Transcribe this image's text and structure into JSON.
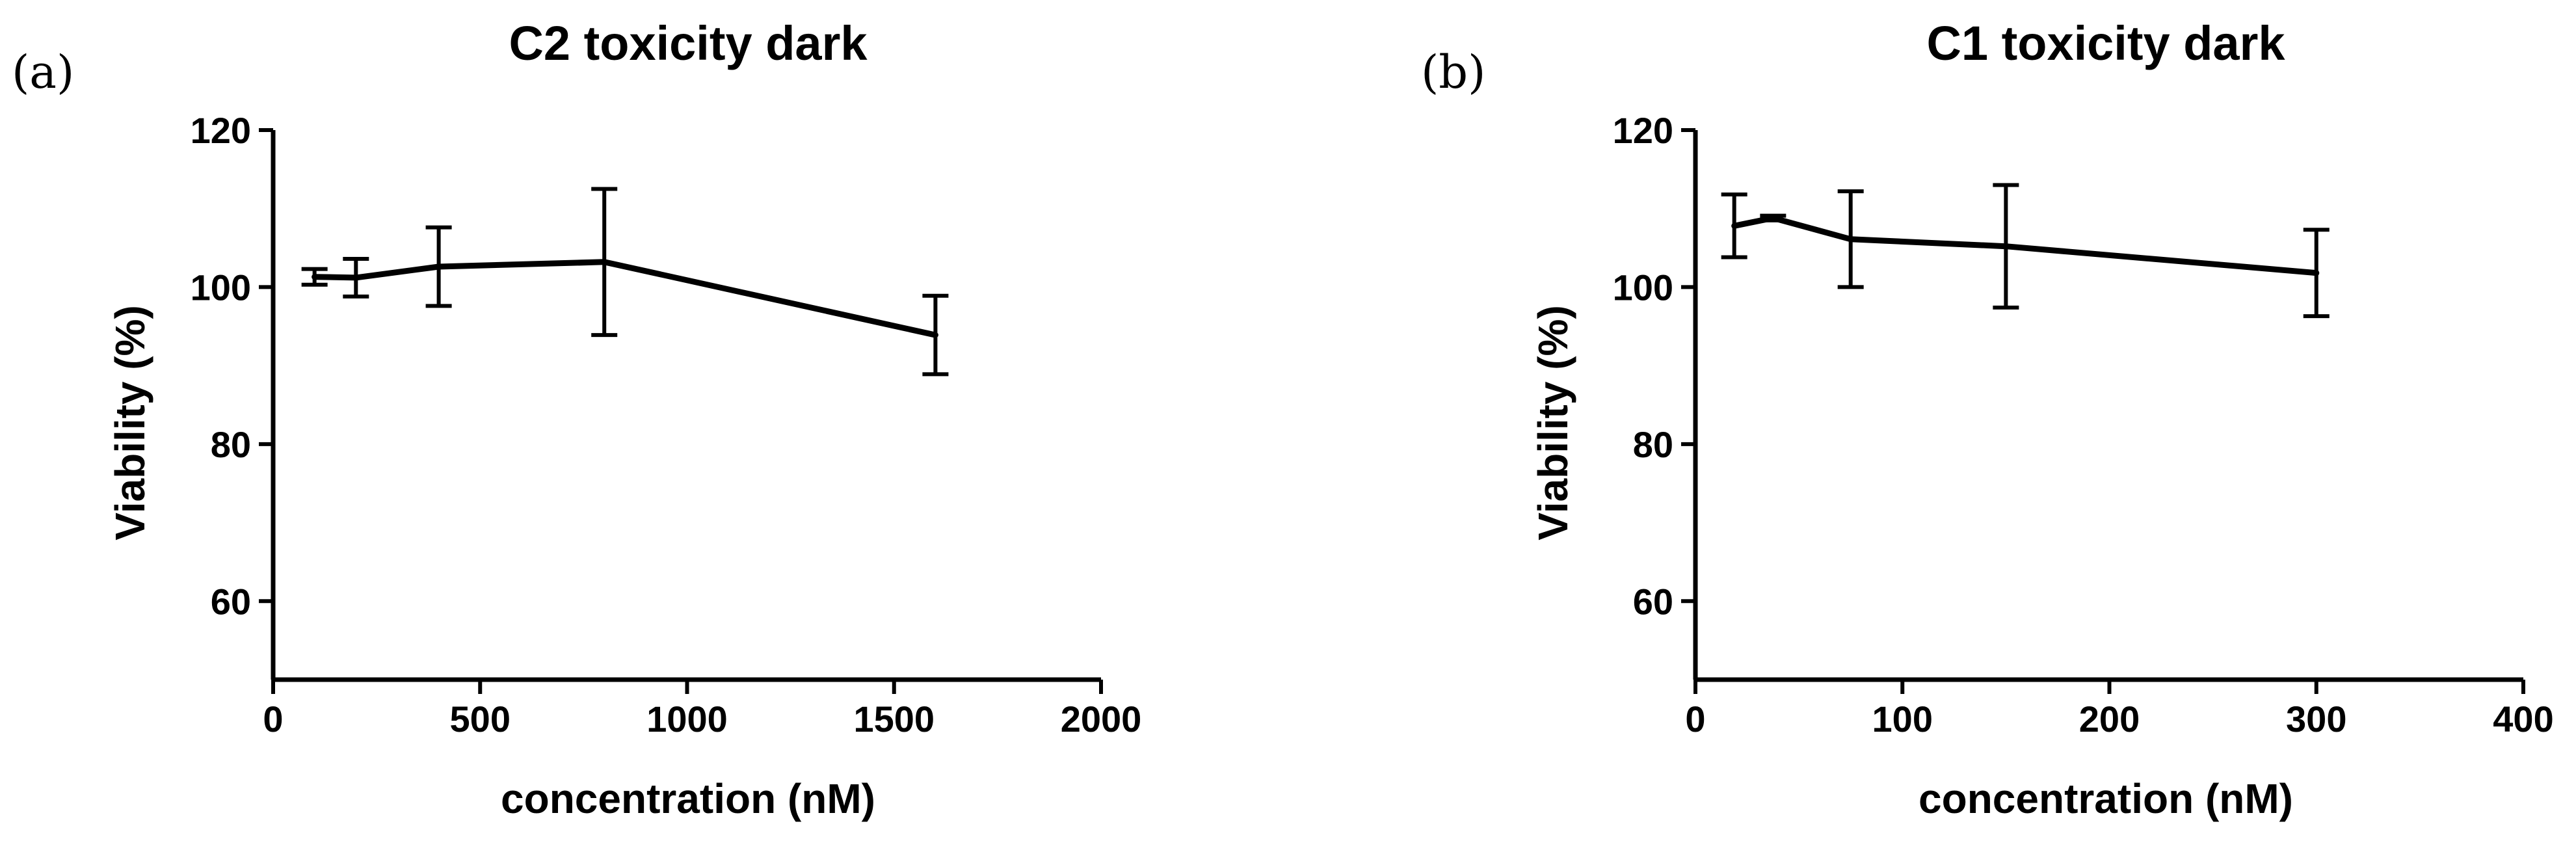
{
  "chart_data": [
    {
      "panel_label": "(a)",
      "type": "line",
      "title": "C2 toxicity dark",
      "xlabel": "concentration (nM)",
      "ylabel": "Viability (%)",
      "xlim": [
        0,
        2000
      ],
      "ylim": [
        50,
        120
      ],
      "xticks": [
        0,
        500,
        1000,
        1500,
        2000
      ],
      "yticks": [
        60,
        80,
        100,
        120
      ],
      "grid": false,
      "legend": "none",
      "series": [
        {
          "x": [
            100,
            200,
            400,
            800,
            1600
          ],
          "y": [
            101.3,
            101.2,
            102.6,
            103.2,
            93.9
          ],
          "error": [
            1.0,
            2.4,
            5.0,
            9.3,
            5.0
          ]
        }
      ]
    },
    {
      "panel_label": "(b)",
      "type": "line",
      "title": "C1 toxicity dark",
      "xlabel": "concentration (nM)",
      "ylabel": "Viability (%)",
      "xlim": [
        0,
        400
      ],
      "ylim": [
        50,
        120
      ],
      "xticks": [
        0,
        100,
        200,
        300,
        400
      ],
      "yticks": [
        60,
        80,
        100,
        120
      ],
      "grid": false,
      "legend": "none",
      "series": [
        {
          "x": [
            18.75,
            37.5,
            75,
            150,
            300
          ],
          "y": [
            107.8,
            108.8,
            106.1,
            105.2,
            101.8
          ],
          "error": [
            4.0,
            0.3,
            6.1,
            7.8,
            5.5
          ]
        }
      ]
    }
  ]
}
